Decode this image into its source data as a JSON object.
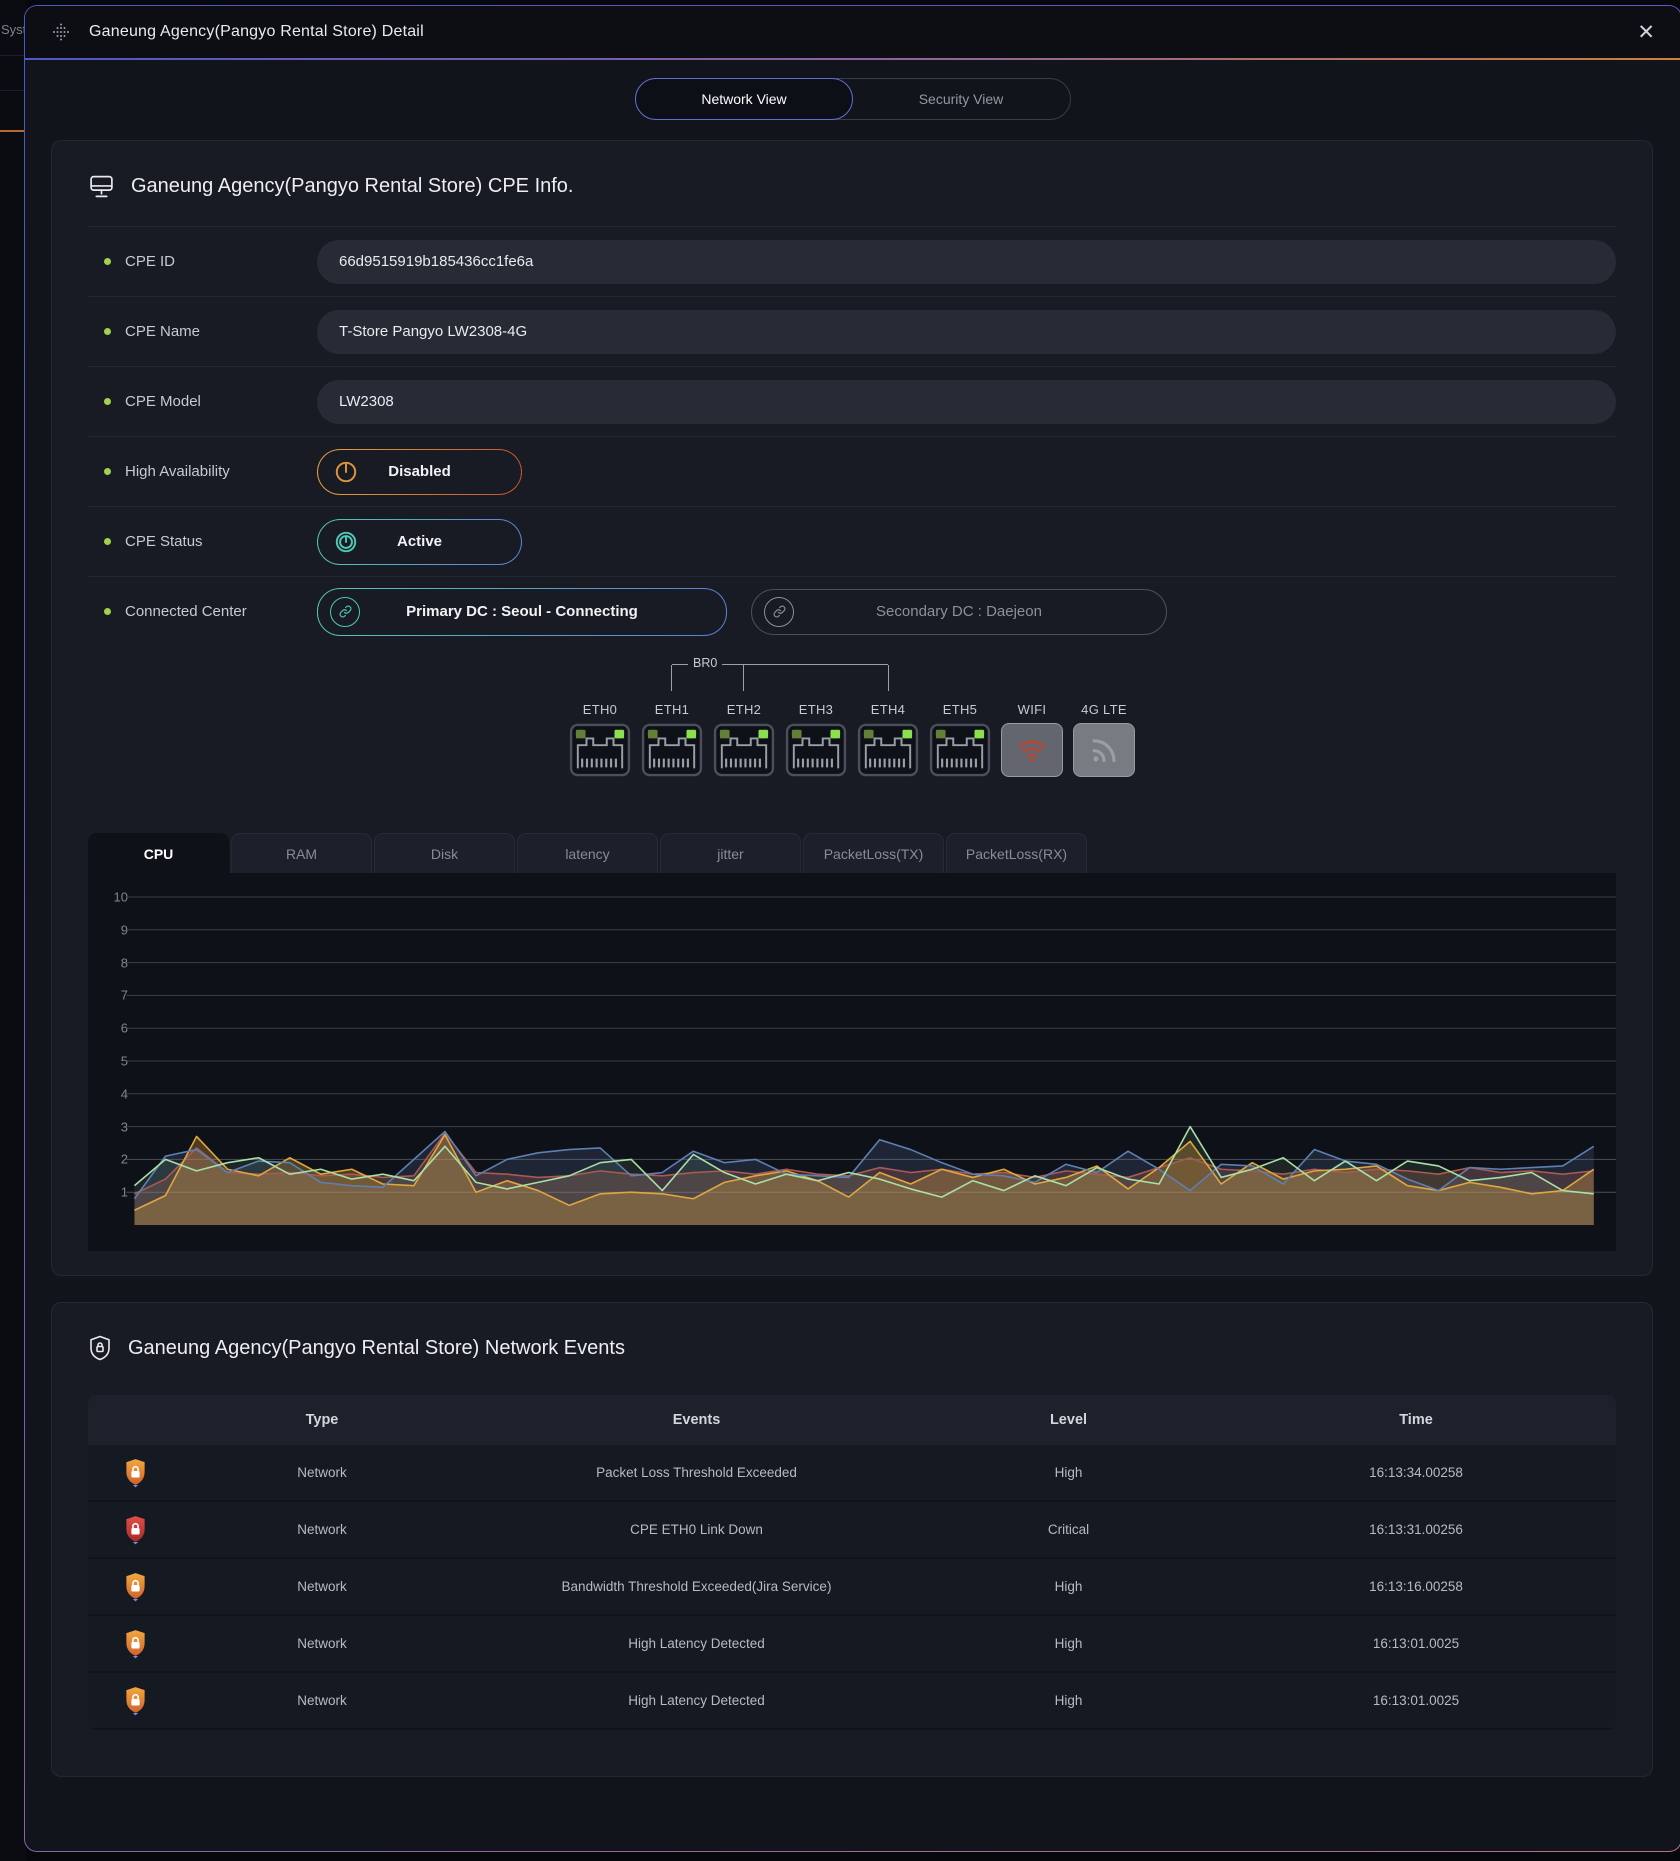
{
  "background": {
    "partial_text": "Syst"
  },
  "modal": {
    "title": "Ganeung Agency(Pangyo Rental Store) Detail",
    "close": "✕"
  },
  "view_tabs": [
    {
      "label": "Network View",
      "active": true
    },
    {
      "label": "Security View",
      "active": false
    }
  ],
  "cpe_info": {
    "title": "Ganeung Agency(Pangyo Rental Store) CPE Info.",
    "fields": [
      {
        "label": "CPE ID",
        "value": "66d9515919b185436cc1fe6a"
      },
      {
        "label": "CPE Name",
        "value": "T-Store Pangyo LW2308-4G"
      },
      {
        "label": "CPE Model",
        "value": "LW2308"
      },
      {
        "label": "High Availability",
        "value": "Disabled",
        "variant": "disabled"
      },
      {
        "label": "CPE Status",
        "value": "Active",
        "variant": "active"
      },
      {
        "label": "Connected Center",
        "centers": [
          {
            "label": "Primary DC : Seoul - Connecting",
            "state": "active"
          },
          {
            "label": "Secondary DC : Daejeon",
            "state": "inactive"
          }
        ]
      }
    ],
    "bridge_label": "BR0",
    "bridge_members": [
      "ETH1",
      "ETH2",
      "ETH4"
    ],
    "ports": [
      "ETH0",
      "ETH1",
      "ETH2",
      "ETH3",
      "ETH4",
      "ETH5"
    ],
    "radios": [
      {
        "label": "WIFI",
        "icon": "wifi-icon",
        "color": "#b14a3a"
      },
      {
        "label": "4G LTE",
        "icon": "rss-icon",
        "color": "#9b9ea6"
      }
    ]
  },
  "metric_tabs": [
    {
      "label": "CPU",
      "active": true
    },
    {
      "label": "RAM",
      "active": false
    },
    {
      "label": "Disk",
      "active": false
    },
    {
      "label": "latency",
      "active": false
    },
    {
      "label": "jitter",
      "active": false
    },
    {
      "label": "PacketLoss(TX)",
      "active": false
    },
    {
      "label": "PacketLoss(RX)",
      "active": false
    }
  ],
  "chart_data": {
    "type": "line",
    "title": "CPU",
    "xlabel": "",
    "ylabel": "",
    "ylim": [
      0,
      10
    ],
    "yticks": [
      1,
      2,
      3,
      4,
      5,
      6,
      7,
      8,
      9,
      10
    ],
    "grid": true,
    "legend": "none",
    "x": [
      0,
      1,
      2,
      3,
      4,
      5,
      6,
      7,
      8,
      9,
      10,
      11,
      12,
      13,
      14,
      15,
      16,
      17,
      18,
      19,
      20,
      21,
      22,
      23,
      24,
      25,
      26,
      27,
      28,
      29,
      30,
      31,
      32,
      33,
      34,
      35,
      36,
      37,
      38,
      39,
      40,
      41,
      42,
      43,
      44,
      45,
      46,
      47
    ],
    "series": [
      {
        "name": "series-blue",
        "color": "#5d7fb2",
        "values": [
          0.8,
          2.1,
          2.3,
          1.6,
          1.95,
          1.9,
          1.3,
          1.2,
          1.15,
          2.0,
          2.85,
          1.5,
          2.0,
          2.2,
          2.3,
          2.35,
          1.5,
          1.6,
          2.25,
          1.9,
          2.0,
          1.55,
          1.5,
          1.45,
          2.6,
          2.3,
          1.9,
          1.55,
          1.5,
          1.3,
          1.85,
          1.6,
          2.25,
          1.7,
          1.05,
          1.85,
          1.8,
          1.25,
          2.3,
          1.95,
          1.85,
          1.4,
          1.05,
          1.75,
          1.7,
          1.75,
          1.8,
          2.4
        ]
      },
      {
        "name": "series-green",
        "color": "#a8e0a8",
        "values": [
          1.2,
          2.0,
          1.65,
          1.9,
          2.05,
          1.55,
          1.7,
          1.4,
          1.55,
          1.35,
          2.4,
          1.3,
          1.1,
          1.3,
          1.5,
          1.9,
          2.0,
          1.05,
          2.15,
          1.6,
          1.25,
          1.55,
          1.35,
          1.6,
          1.4,
          1.1,
          0.85,
          1.35,
          1.05,
          1.5,
          1.2,
          1.75,
          1.4,
          1.25,
          3.0,
          1.45,
          1.7,
          2.05,
          1.35,
          1.95,
          1.35,
          1.95,
          1.8,
          1.35,
          1.45,
          1.6,
          1.05,
          0.95
        ]
      },
      {
        "name": "series-orange",
        "color": "#dfa640",
        "values": [
          0.45,
          0.9,
          2.7,
          1.7,
          1.5,
          2.05,
          1.55,
          1.7,
          1.25,
          1.2,
          2.75,
          1.0,
          1.35,
          1.05,
          0.6,
          0.95,
          1.0,
          0.95,
          0.8,
          1.3,
          1.5,
          1.65,
          1.35,
          0.85,
          1.6,
          1.25,
          1.7,
          1.45,
          1.7,
          1.25,
          1.45,
          1.8,
          1.1,
          1.75,
          2.55,
          1.25,
          1.9,
          1.4,
          1.65,
          1.7,
          1.8,
          1.2,
          1.05,
          1.3,
          1.15,
          0.95,
          1.05,
          1.7
        ]
      },
      {
        "name": "series-red",
        "color": "#a85a50",
        "values": [
          0.95,
          1.4,
          2.35,
          1.6,
          1.55,
          1.6,
          1.5,
          1.55,
          1.45,
          1.5,
          2.8,
          1.6,
          1.55,
          1.45,
          1.5,
          1.65,
          1.55,
          1.5,
          1.6,
          1.65,
          1.55,
          1.7,
          1.55,
          1.5,
          1.75,
          1.6,
          1.7,
          1.55,
          1.6,
          1.45,
          1.65,
          1.55,
          1.45,
          1.75,
          2.05,
          1.7,
          1.65,
          1.55,
          1.7,
          1.6,
          1.7,
          1.65,
          1.55,
          1.75,
          1.6,
          1.65,
          1.55,
          1.65
        ]
      }
    ]
  },
  "events": {
    "title": "Ganeung Agency(Pangyo Rental Store) Network Events",
    "columns": [
      "Type",
      "Events",
      "Level",
      "Time"
    ],
    "rows": [
      {
        "icon": "lock-shield-icon",
        "severity_color": "orange",
        "type": "Network",
        "event": "Packet Loss Threshold Exceeded",
        "level": "High",
        "time": "16:13:34.00258"
      },
      {
        "icon": "lock-shield-icon",
        "severity_color": "red",
        "type": "Network",
        "event": "CPE ETH0 Link Down",
        "level": "Critical",
        "time": "16:13:31.00256"
      },
      {
        "icon": "lock-shield-icon",
        "severity_color": "orange",
        "type": "Network",
        "event": "Bandwidth Threshold Exceeded(Jira Service)",
        "level": "High",
        "time": "16:13:16.00258"
      },
      {
        "icon": "lock-shield-icon",
        "severity_color": "orange",
        "type": "Network",
        "event": "High Latency Detected",
        "level": "High",
        "time": "16:13:01.0025"
      },
      {
        "icon": "lock-shield-icon",
        "severity_color": "orange",
        "type": "Network",
        "event": "High Latency Detected",
        "level": "High",
        "time": "16:13:01.0025"
      }
    ]
  },
  "theme": {
    "modal_border": "#5a5ec4",
    "header_gradient_left": "#5058c5",
    "header_gradient_right": "#ce7e3c",
    "card_bg": "#181b23",
    "accent_blue": "#5b7fd4",
    "accent_teal": "#4ec9b8",
    "accent_orange": "#e5a33f",
    "status_bullet_green": "#a3d14a",
    "port_led_left": "#647f36",
    "port_led_right": "#8ae04f",
    "wifi_icon_red": "#b14a3a",
    "event_icon_orange": "#f2a83e",
    "event_icon_red": "#e05047"
  }
}
